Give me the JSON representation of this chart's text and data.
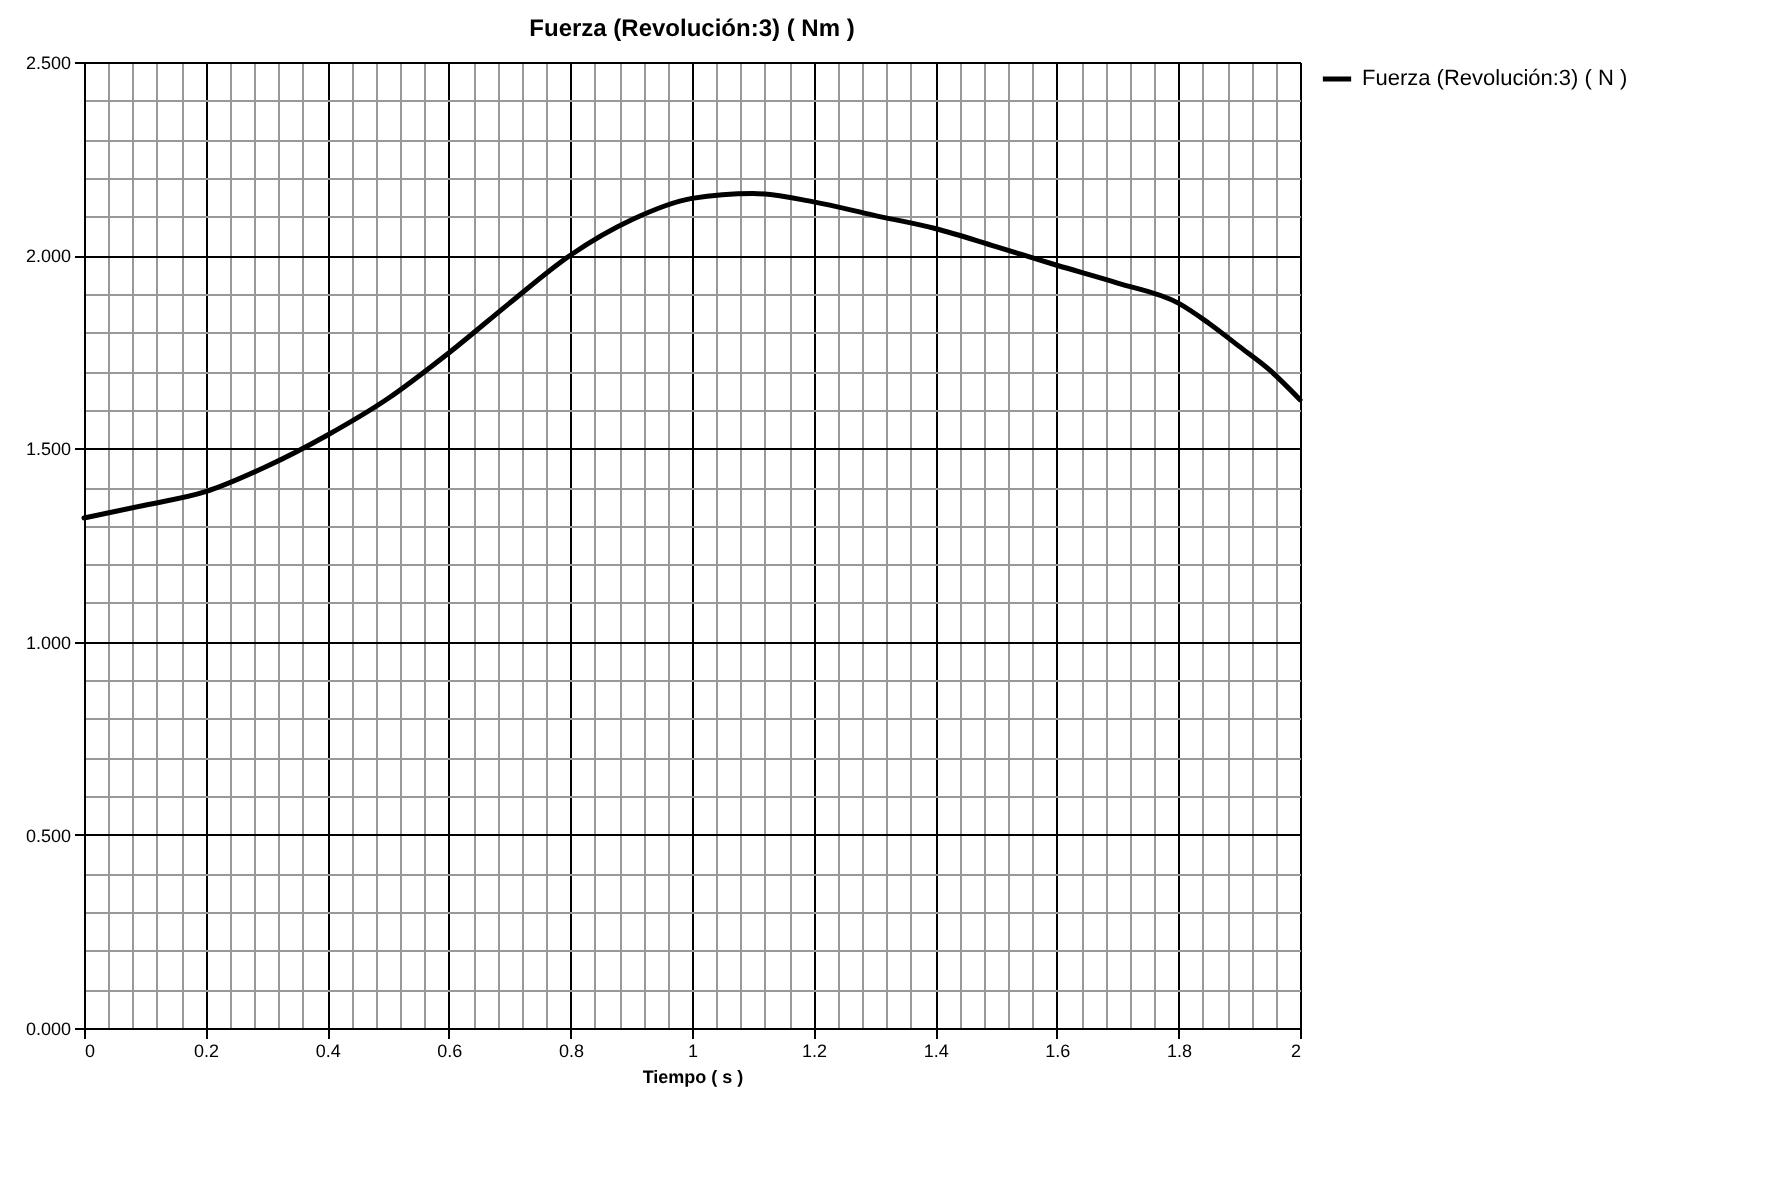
{
  "chart_data": {
    "type": "line",
    "title": "Fuerza (Revolución:3) ( Nm )",
    "xlabel": "Tiempo ( s )",
    "x": [
      0,
      0.1,
      0.2,
      0.3,
      0.4,
      0.5,
      0.6,
      0.7,
      0.8,
      0.9,
      1.0,
      1.1,
      1.2,
      1.3,
      1.4,
      1.5,
      1.6,
      1.7,
      1.8,
      1.85,
      1.9,
      1.95,
      2.0
    ],
    "series": [
      {
        "name": "Fuerza (Revolución:3) ( N )",
        "color": "#000000",
        "values": [
          1.32,
          1.353,
          1.388,
          1.453,
          1.534,
          1.629,
          1.747,
          1.876,
          2.0,
          2.091,
          2.147,
          2.16,
          2.138,
          2.103,
          2.069,
          2.022,
          1.974,
          1.928,
          1.876,
          1.824,
          1.764,
          1.703,
          1.626
        ]
      }
    ],
    "xlim": [
      0,
      2
    ],
    "ylim": [
      0,
      2.5
    ],
    "xticks": [
      0,
      {
        "value": 0.04,
        "label": null
      },
      {
        "value": 0.08,
        "label": null
      },
      {
        "value": 0.12,
        "label": null
      },
      {
        "value": 0.16,
        "label": null
      },
      0.2,
      {
        "value": 0.24,
        "label": null
      },
      {
        "value": 0.28,
        "label": null
      },
      {
        "value": 0.32,
        "label": null
      },
      {
        "value": 0.36,
        "label": null
      },
      0.4,
      {
        "value": 0.44,
        "label": null
      },
      {
        "value": 0.48,
        "label": null
      },
      {
        "value": 0.52,
        "label": null
      },
      {
        "value": 0.56,
        "label": null
      },
      0.6,
      {
        "value": 0.64,
        "label": null
      },
      {
        "value": 0.68,
        "label": null
      },
      {
        "value": 0.72,
        "label": null
      },
      {
        "value": 0.76,
        "label": null
      },
      0.8,
      {
        "value": 0.84,
        "label": null
      },
      {
        "value": 0.88,
        "label": null
      },
      {
        "value": 0.92,
        "label": null
      },
      {
        "value": 0.96,
        "label": null
      },
      1,
      {
        "value": 1.04,
        "label": null
      },
      {
        "value": 1.08,
        "label": null
      },
      {
        "value": 1.12,
        "label": null
      },
      {
        "value": 1.16,
        "label": null
      },
      1.2,
      {
        "value": 1.24,
        "label": null
      },
      {
        "value": 1.28,
        "label": null
      },
      {
        "value": 1.32,
        "label": null
      },
      {
        "value": 1.36,
        "label": null
      },
      1.4,
      {
        "value": 1.44,
        "label": null
      },
      {
        "value": 1.48,
        "label": null
      },
      {
        "value": 1.52,
        "label": null
      },
      {
        "value": 1.56,
        "label": null
      },
      1.6,
      {
        "value": 1.64,
        "label": null
      },
      {
        "value": 1.68,
        "label": null
      },
      {
        "value": 1.72,
        "label": null
      },
      {
        "value": 1.76,
        "label": null
      },
      1.8,
      {
        "value": 1.84,
        "label": null
      },
      {
        "value": 1.88,
        "label": null
      },
      {
        "value": 1.92,
        "label": null
      },
      {
        "value": 1.96,
        "label": null
      },
      2
    ],
    "yticks": [
      {
        "value": 0,
        "label": "0.000"
      },
      {
        "value": 0.1,
        "label": null
      },
      {
        "value": 0.2,
        "label": null
      },
      {
        "value": 0.3,
        "label": null
      },
      {
        "value": 0.4,
        "label": null
      },
      {
        "value": 0.5,
        "label": "0.500"
      },
      {
        "value": 0.6,
        "label": null
      },
      {
        "value": 0.7,
        "label": null
      },
      {
        "value": 0.8,
        "label": null
      },
      {
        "value": 0.9,
        "label": null
      },
      {
        "value": 1,
        "label": "1.000"
      },
      {
        "value": 1.1,
        "label": null
      },
      {
        "value": 1.2,
        "label": null
      },
      {
        "value": 1.3,
        "label": null
      },
      {
        "value": 1.4,
        "label": null
      },
      {
        "value": 1.5,
        "label": "1.500"
      },
      {
        "value": 1.6,
        "label": null
      },
      {
        "value": 1.7,
        "label": null
      },
      {
        "value": 1.8,
        "label": null
      },
      {
        "value": 1.9,
        "label": null
      },
      {
        "value": 2,
        "label": "2.000"
      },
      {
        "value": 2.1,
        "label": null
      },
      {
        "value": 2.2,
        "label": null
      },
      {
        "value": 2.3,
        "label": null
      },
      {
        "value": 2.4,
        "label": null
      },
      {
        "value": 2.5,
        "label": "2.500"
      }
    ],
    "grid": true,
    "legend": "right",
    "marker": "none",
    "line_style": "solid"
  }
}
